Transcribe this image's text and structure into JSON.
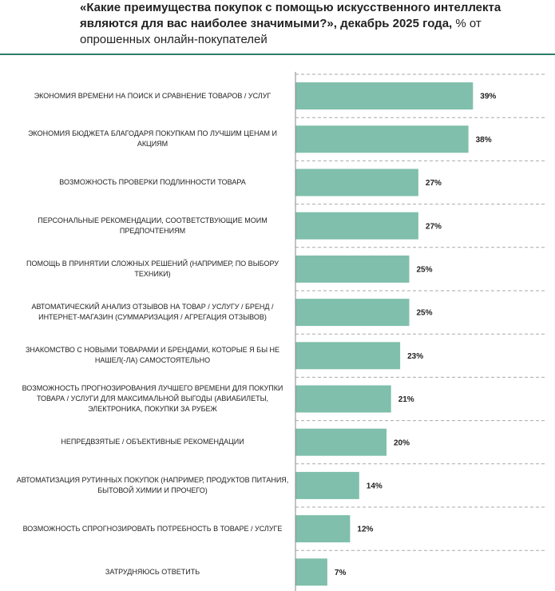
{
  "chart_data": {
    "type": "bar",
    "orientation": "horizontal",
    "title": "«Какие преимущества покупок с помощью искусственного интеллекта являются для вас наиболее значимыми?», декабрь 2025 года,",
    "subtitle": "% от опрошенных онлайн-покупателей",
    "categories": [
      "ЭКОНОМИЯ ВРЕМЕНИ НА ПОИСК И СРАВНЕНИЕ ТОВАРОВ / УСЛУГ",
      "ЭКОНОМИЯ БЮДЖЕТА БЛАГОДАРЯ ПОКУПКАМ ПО ЛУЧШИМ ЦЕНАМ И АКЦИЯМ",
      "ВОЗМОЖНОСТЬ ПРОВЕРКИ ПОДЛИННОСТИ ТОВАРА",
      "ПЕРСОНАЛЬНЫЕ РЕКОМЕНДАЦИИ, СООТВЕТСТВУЮЩИЕ МОИМ ПРЕДПОЧТЕНИЯМ",
      "ПОМОЩЬ В ПРИНЯТИИ СЛОЖНЫХ РЕШЕНИЙ (НАПРИМЕР, ПО ВЫБОРУ ТЕХНИКИ)",
      "АВТОМАТИЧЕСКИЙ АНАЛИЗ ОТЗЫВОВ НА ТОВАР / УСЛУГУ / БРЕНД / ИНТЕРНЕТ-МАГАЗИН (СУММАРИЗАЦИЯ / АГРЕГАЦИЯ ОТЗЫВОВ)",
      "ЗНАКОМСТВО С НОВЫМИ ТОВАРАМИ И БРЕНДАМИ, КОТОРЫЕ Я БЫ НЕ НАШЕЛ(-ЛА) САМОСТОЯТЕЛЬНО",
      "ВОЗМОЖНОСТЬ ПРОГНОЗИРОВАНИЯ ЛУЧШЕГО ВРЕМЕНИ ДЛЯ ПОКУПКИ ТОВАРА / УСЛУГИ ДЛЯ МАКСИМАЛЬНОЙ ВЫГОДЫ (АВИАБИЛЕТЫ, ЭЛЕКТРОНИКА, ПОКУПКИ ЗА РУБЕЖ",
      "НЕПРЕДВЗЯТЫЕ / ОБЪЕКТИВНЫЕ РЕКОМЕНДАЦИИ",
      "АВТОМАТИЗАЦИЯ РУТИННЫХ ПОКУПОК (НАПРИМЕР, ПРОДУКТОВ ПИТАНИЯ, БЫТОВОЙ ХИМИИ И ПРОЧЕГО)",
      "ВОЗМОЖНОСТЬ СПРОГНОЗИРОВАТЬ ПОТРЕБНОСТЬ В ТОВАРЕ / УСЛУГЕ",
      "ЗАТРУДНЯЮСЬ ОТВЕТИТЬ"
    ],
    "values": [
      39,
      38,
      27,
      27,
      25,
      25,
      23,
      21,
      20,
      14,
      12,
      7
    ],
    "value_labels": [
      "39%",
      "38%",
      "27%",
      "27%",
      "25%",
      "25%",
      "23%",
      "21%",
      "20%",
      "14%",
      "12%",
      "7%"
    ],
    "color": "#7fbfab"
  }
}
